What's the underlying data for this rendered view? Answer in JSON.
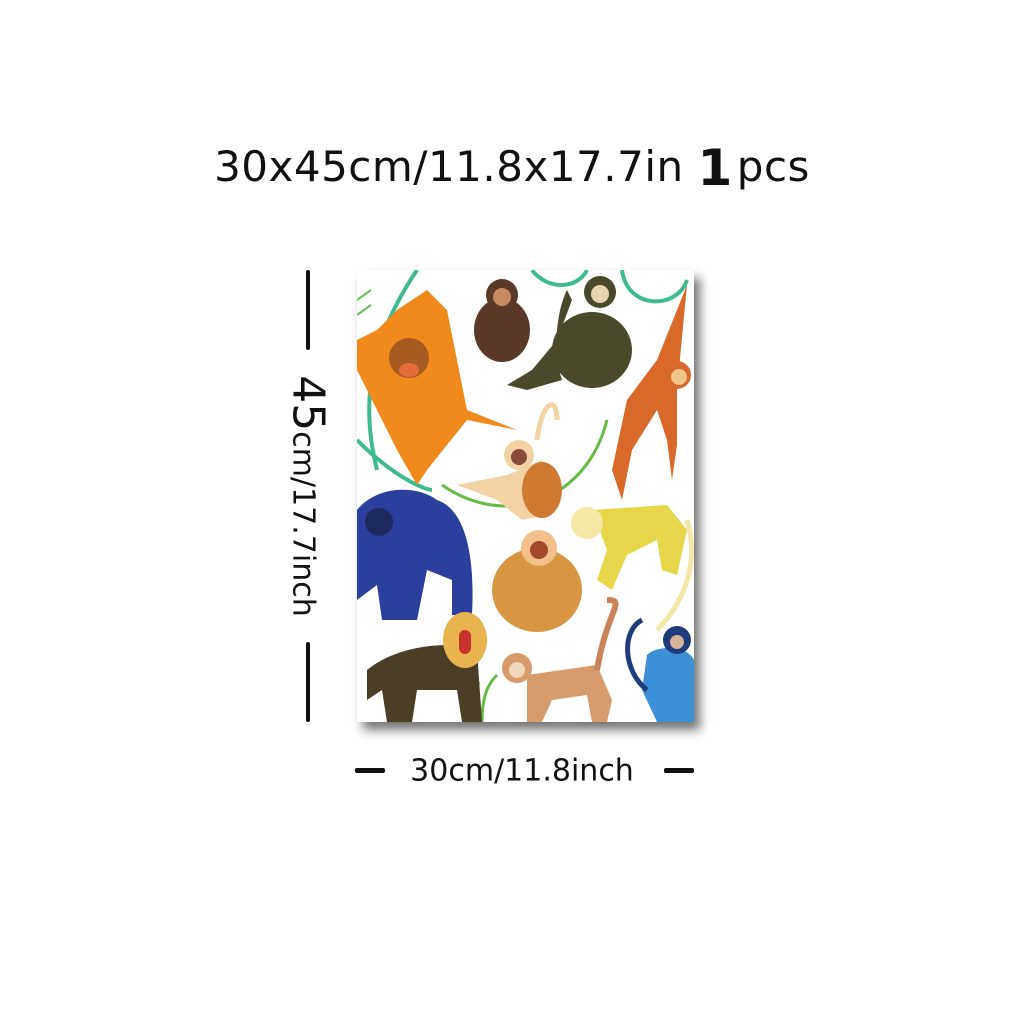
{
  "header": {
    "size_text": "30x45cm/11.8x17.7in",
    "quantity": "1",
    "quantity_unit": "pcs"
  },
  "dimensions": {
    "height_number": "45",
    "height_rest": "cm/17.7inch",
    "width_text": "30cm/11.8inch"
  },
  "artwork": {
    "subject": "illustrated primates poster",
    "colors": {
      "orangutan": "#f08a1c",
      "gorilla": "#2b3f9c",
      "gibbon": "#4a4a2a",
      "vine": "#3dbb8f"
    }
  }
}
